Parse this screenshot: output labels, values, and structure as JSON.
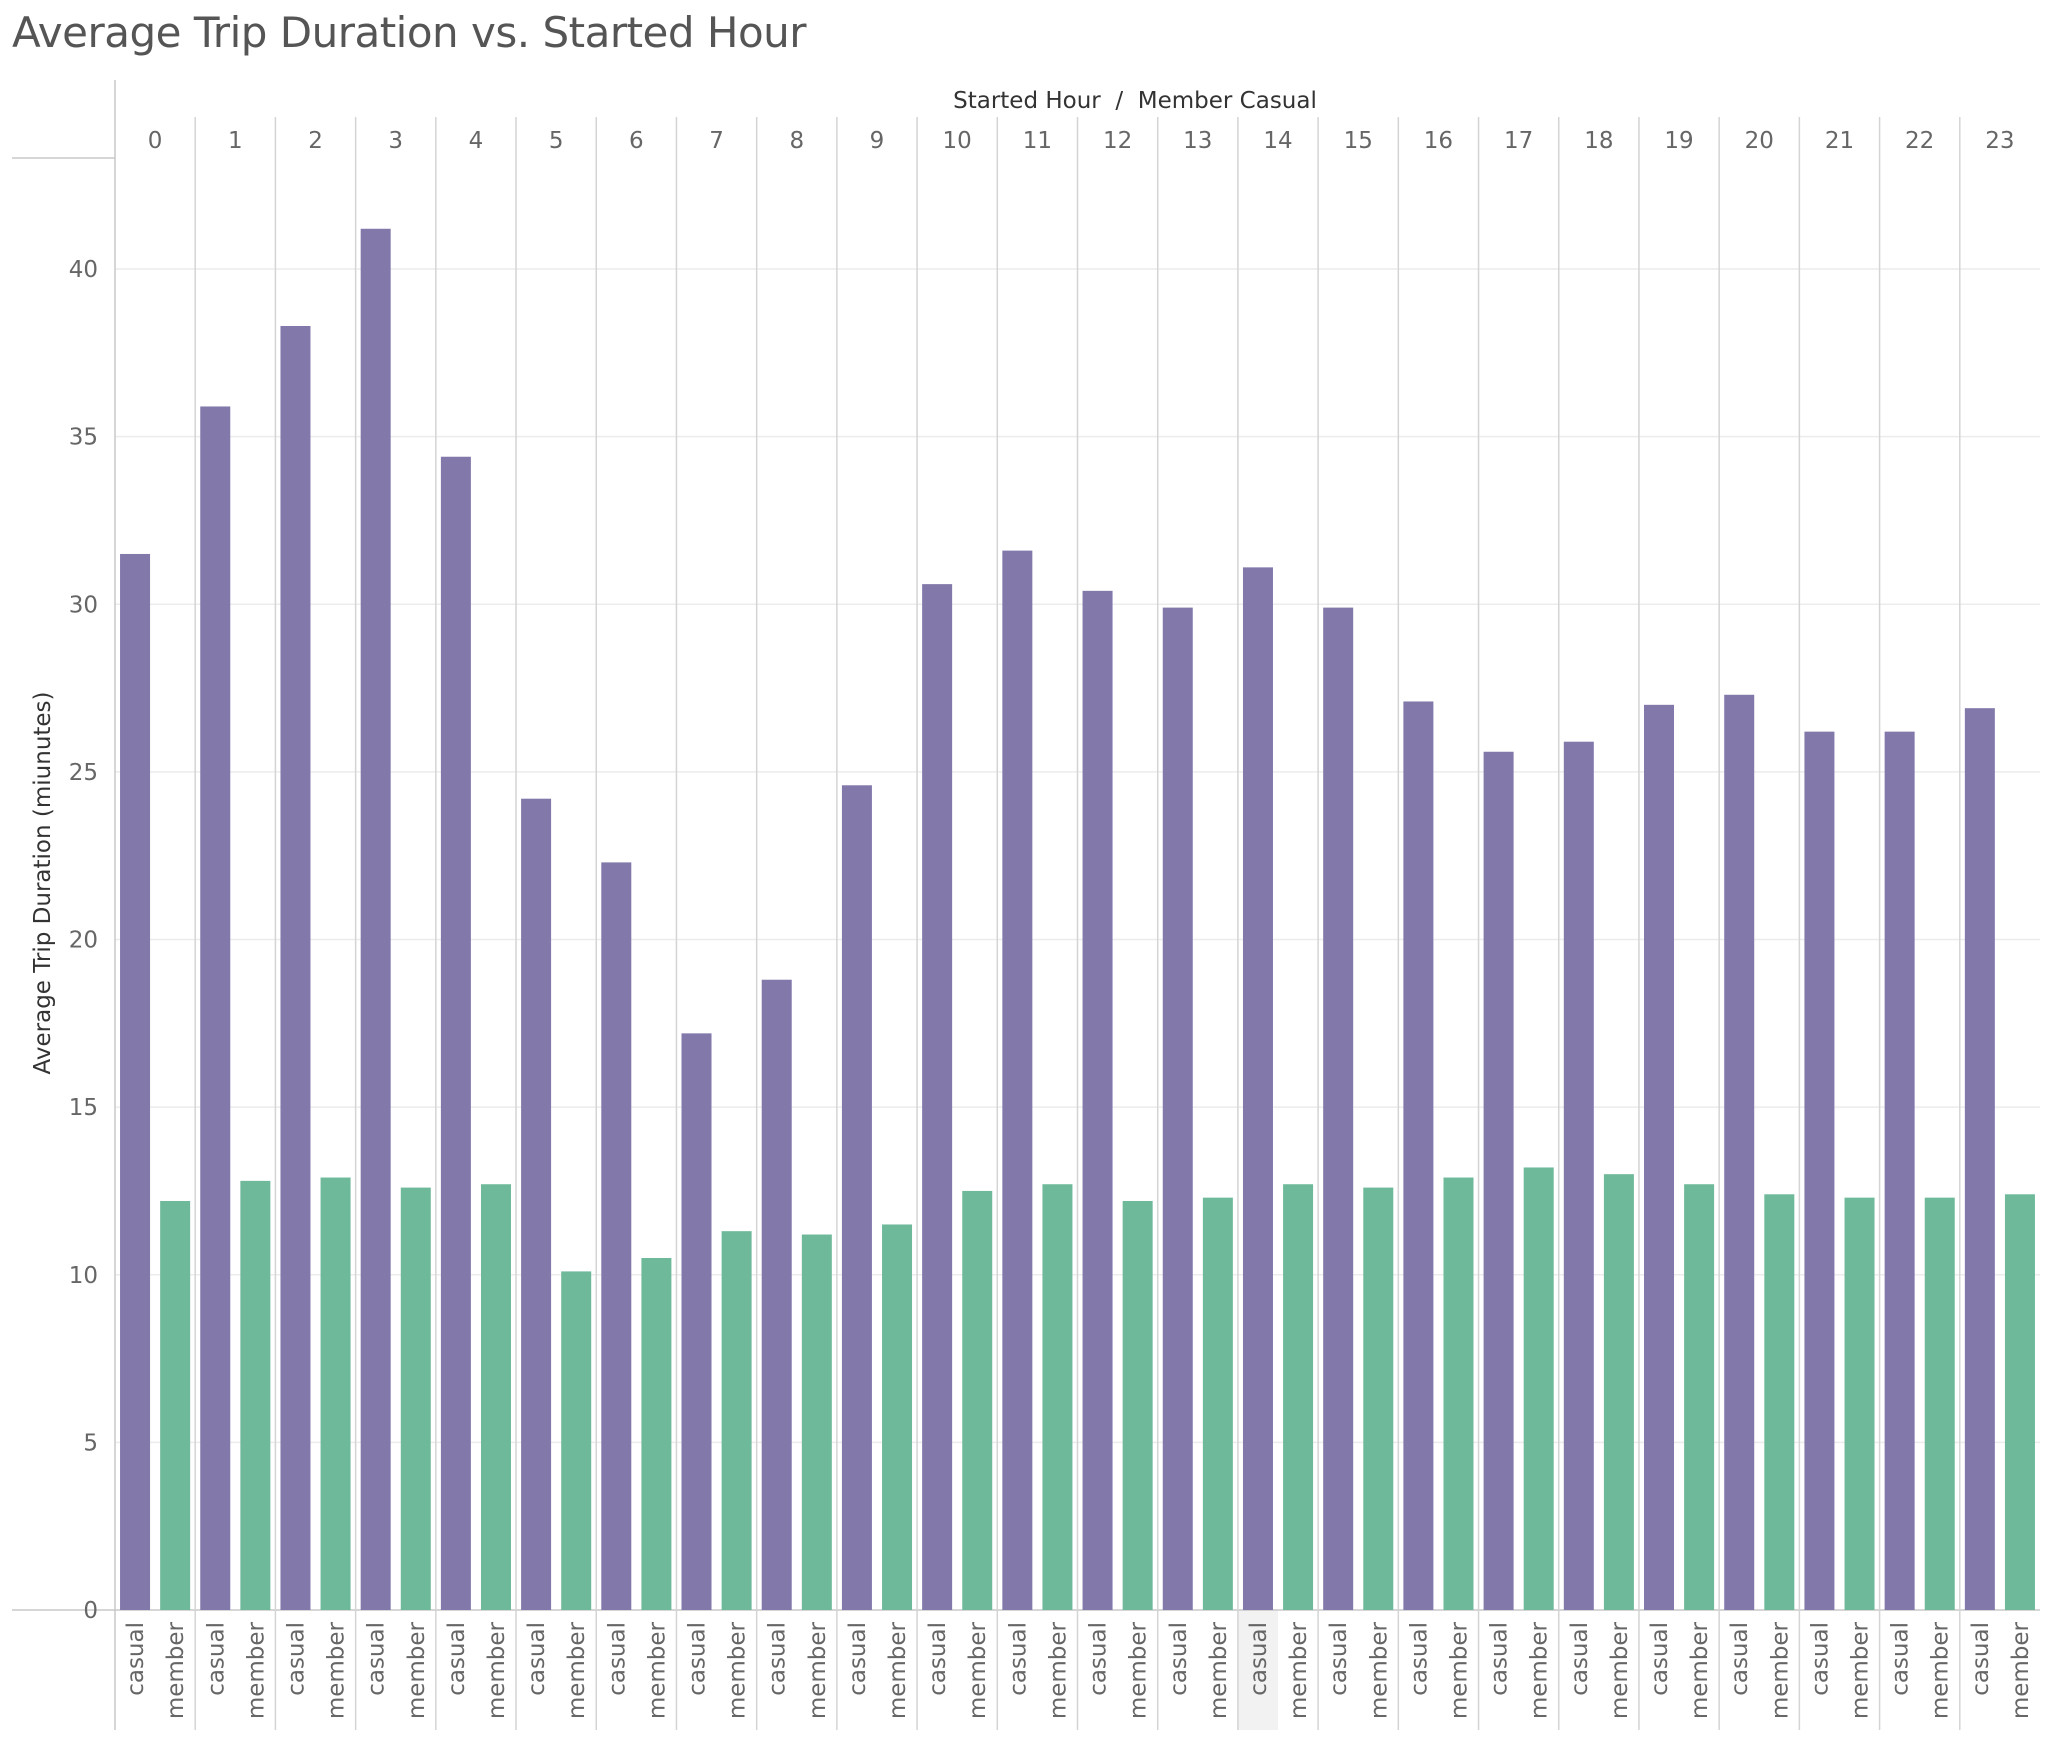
{
  "page": {
    "title": "Average Trip Duration vs. Started Hour"
  },
  "chart_data": {
    "type": "bar",
    "title": "Average Trip Duration vs. Started Hour",
    "column_header": "Started Hour  /  Member Casual",
    "ylabel": "Average Trip Duration (miunutes)",
    "ylim": [
      0,
      43
    ],
    "yticks": [
      0,
      5,
      10,
      15,
      20,
      25,
      30,
      35,
      40
    ],
    "grid": true,
    "categories": [
      "0",
      "1",
      "2",
      "3",
      "4",
      "5",
      "6",
      "7",
      "8",
      "9",
      "10",
      "11",
      "12",
      "13",
      "14",
      "15",
      "16",
      "17",
      "18",
      "19",
      "20",
      "21",
      "22",
      "23"
    ],
    "series": [
      {
        "name": "casual",
        "color": "#8278aa",
        "values": [
          31.5,
          35.9,
          38.3,
          41.2,
          34.4,
          24.2,
          22.3,
          17.2,
          18.8,
          24.6,
          30.6,
          31.6,
          30.4,
          29.9,
          31.1,
          29.9,
          27.1,
          25.6,
          25.9,
          27.0,
          27.3,
          26.2,
          26.2,
          26.9
        ]
      },
      {
        "name": "member",
        "color": "#6fb99b",
        "values": [
          12.2,
          12.8,
          12.9,
          12.6,
          12.7,
          10.1,
          10.5,
          11.3,
          11.2,
          11.5,
          12.5,
          12.7,
          12.2,
          12.3,
          12.7,
          12.6,
          12.9,
          13.2,
          13.0,
          12.7,
          12.4,
          12.3,
          12.3,
          12.4
        ]
      }
    ],
    "highlighted": {
      "category": "14",
      "series": "casual"
    }
  }
}
